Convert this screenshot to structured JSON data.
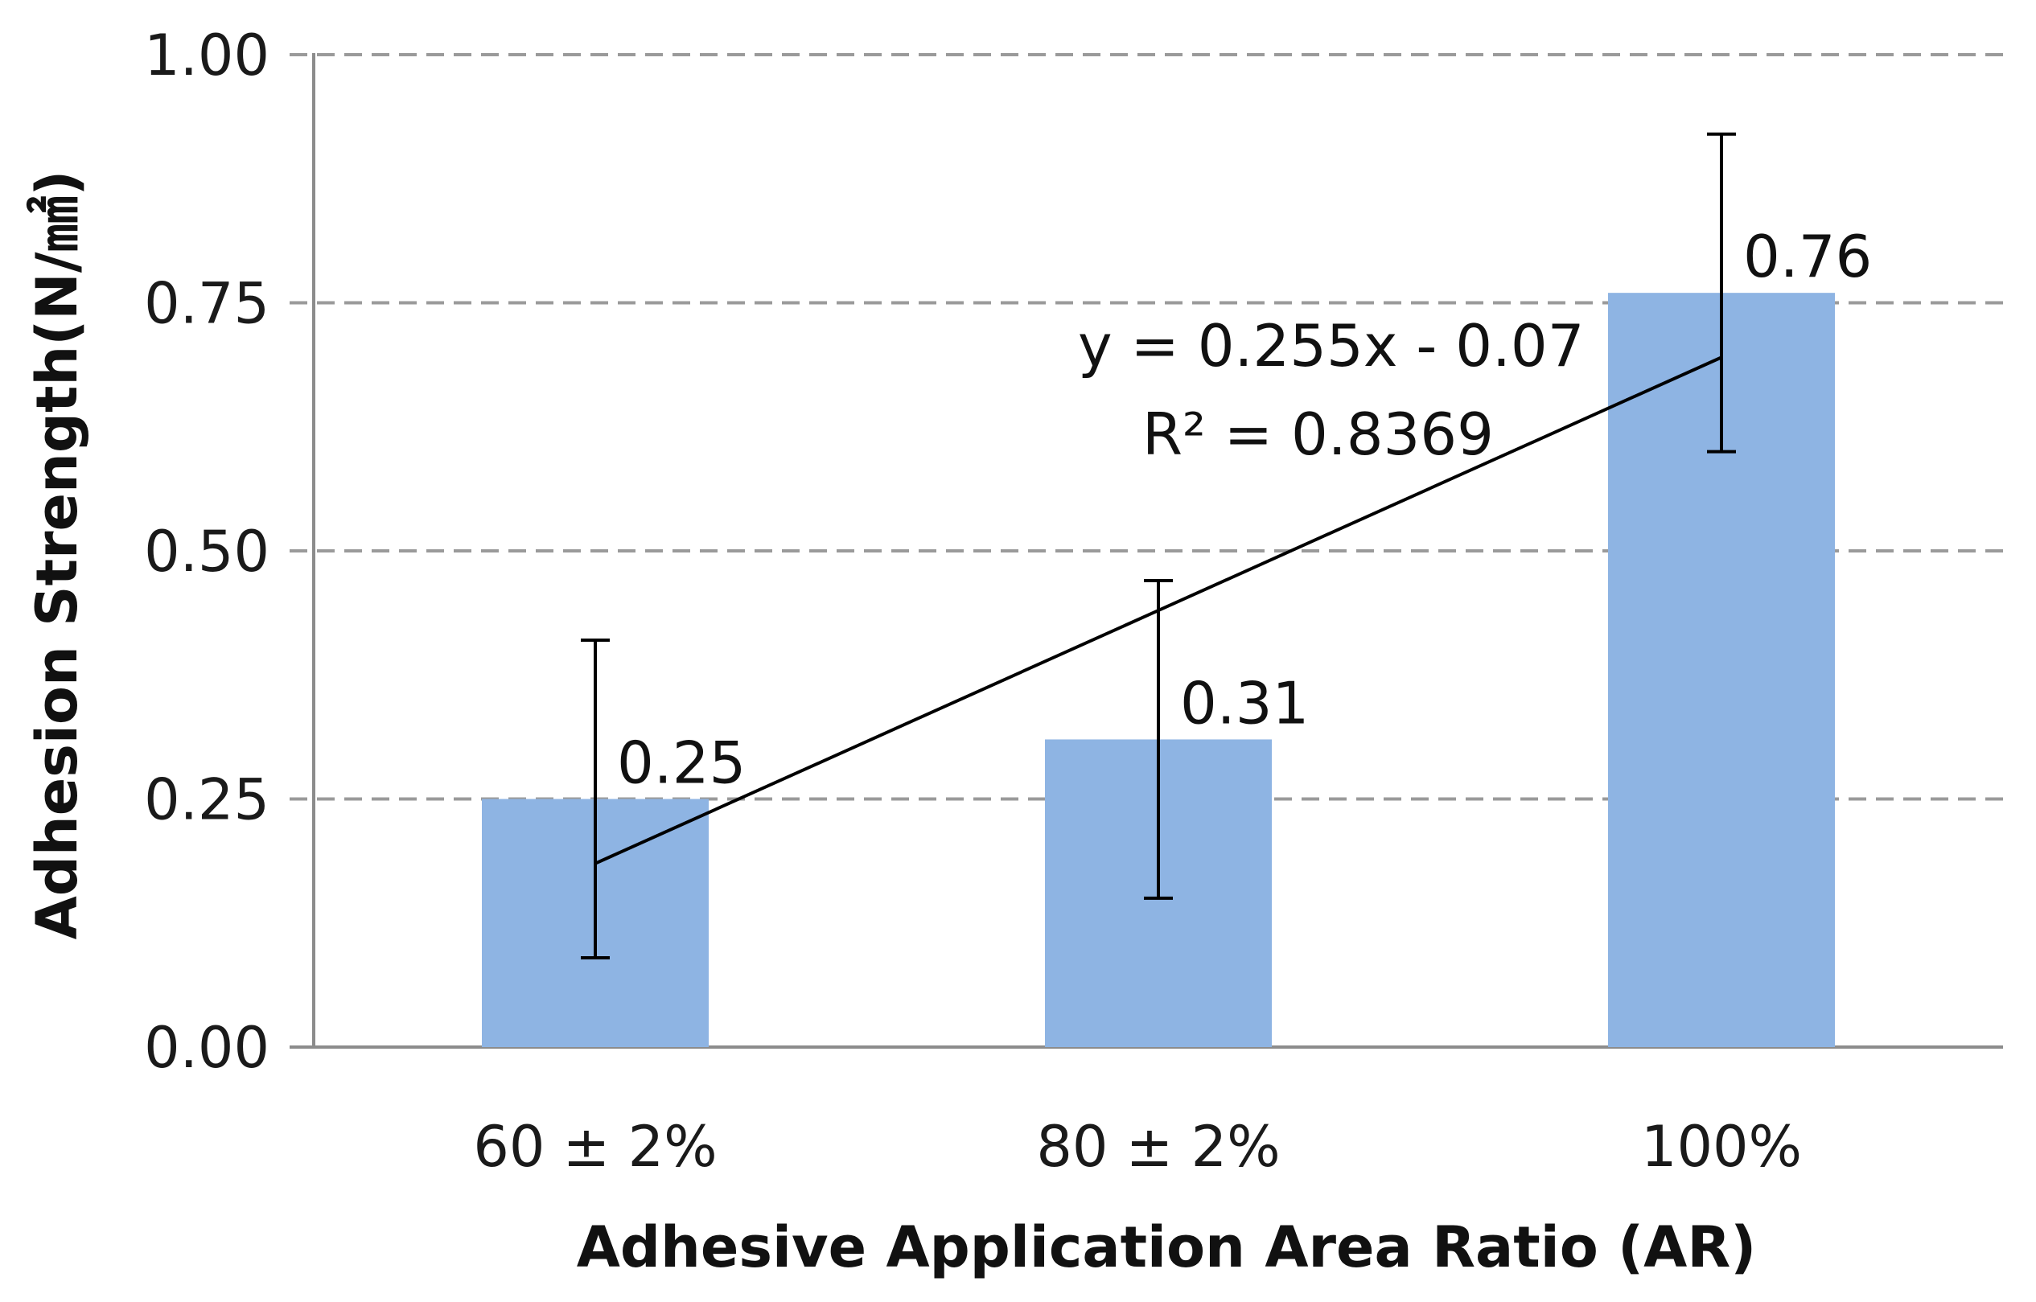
{
  "chart_data": {
    "type": "bar",
    "title": "",
    "xlabel": "Adhesive Application Area Ratio (AR)",
    "ylabel": "Adhesion Strength(N/㎟)",
    "categories": [
      "60 ± 2%",
      "80 ± 2%",
      "100%"
    ],
    "values": [
      0.25,
      0.31,
      0.76
    ],
    "value_labels": [
      "0.25",
      "0.31",
      "0.76"
    ],
    "error_bars": [
      {
        "low": 0.09,
        "high": 0.41
      },
      {
        "low": 0.15,
        "high": 0.47
      },
      {
        "low": 0.6,
        "high": 0.92
      }
    ],
    "ylim": [
      0,
      1.0
    ],
    "yticks": [
      0,
      0.25,
      0.5,
      0.75,
      1.0
    ],
    "ytick_labels": [
      "0.00",
      "0.25",
      "0.50",
      "0.75",
      "1.00"
    ],
    "grid": true,
    "trendline": {
      "type": "linear",
      "slope": 0.255,
      "intercept": -0.07,
      "equation": "y = 0.255x - 0.07",
      "r_squared": "R² = 0.8369"
    },
    "colors": {
      "bar": "#8EB4E3",
      "grid": "#9a9a9a",
      "axis": "#8c8c8c",
      "line": "#000000"
    }
  }
}
